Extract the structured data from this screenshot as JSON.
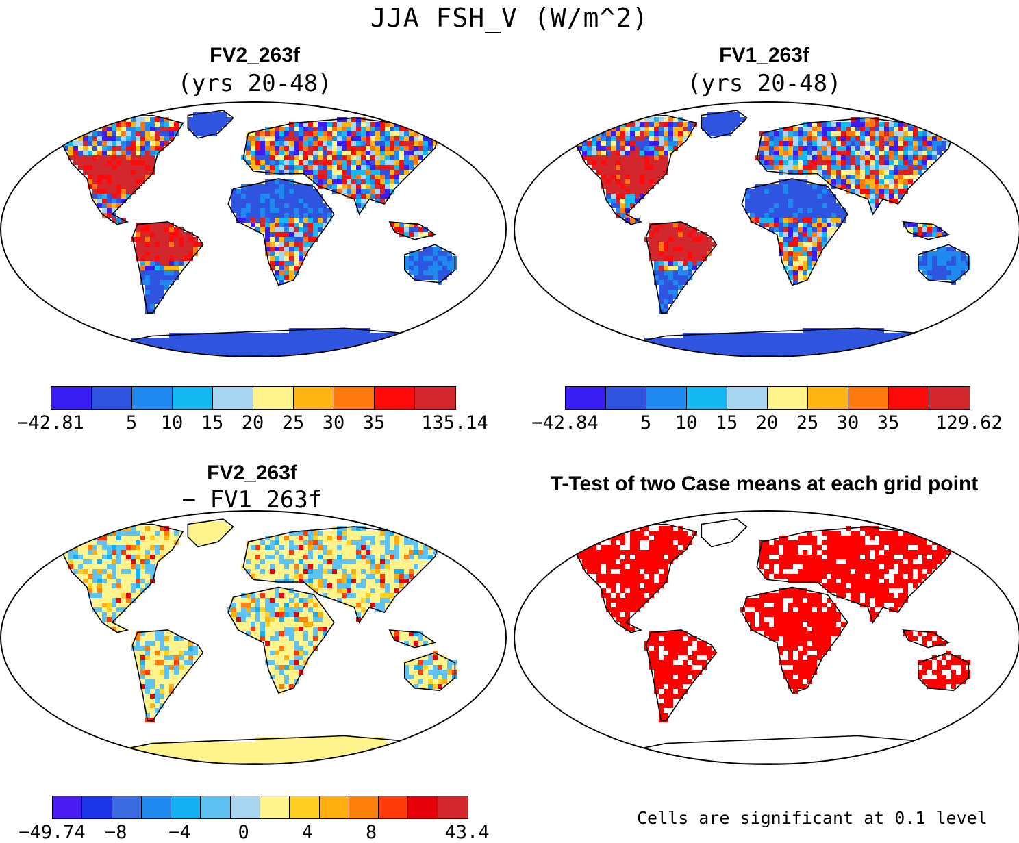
{
  "title": "JJA FSH_V (W/m^2)",
  "panels": [
    {
      "title": "FV2_263f",
      "subtitle": "(yrs 20-48)"
    },
    {
      "title": "FV1_263f",
      "subtitle": "(yrs 20-48)"
    },
    {
      "title": "FV2_263f",
      "subtitle": "− FV1_263f"
    },
    {
      "title": "T-Test of two Case means at each grid point",
      "subtitle": ""
    }
  ],
  "colorbars": [
    {
      "colors": [
        "#3a1df2",
        "#2f55e0",
        "#1e8af0",
        "#15b9f2",
        "#a8d5ef",
        "#fff38c",
        "#ffb614",
        "#ff780d",
        "#ff0a0a",
        "#d2282d"
      ],
      "labels": [
        "−42.81",
        "5",
        "10",
        "15",
        "20",
        "25",
        "30",
        "35",
        "135.14"
      ]
    },
    {
      "colors": [
        "#3a1df2",
        "#2f55e0",
        "#1e8af0",
        "#15b9f2",
        "#a8d5ef",
        "#fff38c",
        "#ffb614",
        "#ff780d",
        "#ff0a0a",
        "#d2282d"
      ],
      "labels": [
        "−42.84",
        "5",
        "10",
        "15",
        "20",
        "25",
        "30",
        "35",
        "129.62"
      ]
    },
    {
      "colors": [
        "#4a1df2",
        "#1d36e8",
        "#3b6be0",
        "#1e8af0",
        "#15b0f2",
        "#5ec3f2",
        "#a8d5ef",
        "#fff38c",
        "#ffd020",
        "#ffae10",
        "#ff800d",
        "#ff3a0a",
        "#e6000a",
        "#d2282d"
      ],
      "labels": [
        "−49.74",
        "",
        "−8",
        "",
        "−4",
        "",
        "0",
        "",
        "4",
        "",
        "8",
        "",
        "",
        "43.4"
      ]
    }
  ],
  "note": "Cells are significant at 0.1 level",
  "map_colors": {
    "ocean": "#ffffff",
    "significant": "#ff0000",
    "coast": "#000000"
  }
}
